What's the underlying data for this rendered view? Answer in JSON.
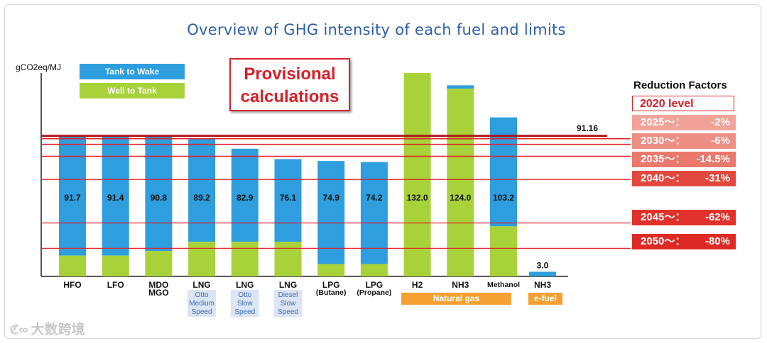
{
  "title": "Overview of GHG intensity of each fuel and limits",
  "provisional": [
    "Provisional",
    "calculations"
  ],
  "reduction_title": "Reduction Factors",
  "level_2020": "2020 level",
  "reductions": [
    {
      "label": "2025～：",
      "pct": "-2%",
      "limit": 89.34,
      "color": "#f1a39a"
    },
    {
      "label": "2030～：",
      "pct": "-6%",
      "limit": 85.69,
      "color": "#ee8f85"
    },
    {
      "label": "2035～：",
      "pct": "-14.5%",
      "limit": 77.95,
      "color": "#ea786d"
    },
    {
      "label": "2040～：",
      "pct": "-31%",
      "limit": 62.9,
      "color": "#e2483d"
    },
    {
      "label": "2045～：",
      "pct": "-62%",
      "limit": 34.64,
      "color": "#e0312a"
    },
    {
      "label": "2050～：",
      "pct": "-80%",
      "limit": 18.23,
      "color": "#de2a24"
    }
  ],
  "groups": {
    "natural_gas": "Natural gas",
    "efuel": "e-fuel"
  },
  "watermark": "大数跨境",
  "chart_data": {
    "type": "bar",
    "ylabel": "gCO2eq/MJ",
    "ylim": [
      0,
      132
    ],
    "legend": [
      "Tank to Wake",
      "Well to Tank"
    ],
    "colors": {
      "tank_to_wake": "#2e9ede",
      "well_to_tank": "#a8d23a"
    },
    "baseline": {
      "label": "91.16",
      "value": 91.16
    },
    "categories": [
      {
        "name": [
          "HFO"
        ],
        "sub": [],
        "total": 91.7,
        "wtt": 13.5,
        "label": "91.7"
      },
      {
        "name": [
          "LFO"
        ],
        "sub": [],
        "total": 91.4,
        "wtt": 13.5,
        "label": "91.4"
      },
      {
        "name": [
          "MDO",
          "MGO"
        ],
        "sub": [],
        "total": 90.8,
        "wtt": 16.5,
        "label": "90.8"
      },
      {
        "name": [
          "LNG"
        ],
        "sub": [
          "Otto",
          "Medium",
          "Speed"
        ],
        "total": 89.2,
        "wtt": 22.5,
        "label": "89.2"
      },
      {
        "name": [
          "LNG"
        ],
        "sub": [
          "Otto",
          "Slow",
          "Speed"
        ],
        "total": 82.9,
        "wtt": 22.5,
        "label": "82.9"
      },
      {
        "name": [
          "LNG"
        ],
        "sub": [
          "Diesel",
          "Slow",
          "Speed"
        ],
        "total": 76.1,
        "wtt": 22.5,
        "label": "76.1"
      },
      {
        "name": [
          "LPG",
          "(Butane)"
        ],
        "sub": [],
        "total": 74.9,
        "wtt": 8.0,
        "label": "74.9"
      },
      {
        "name": [
          "LPG",
          "(Propane)"
        ],
        "sub": [],
        "total": 74.2,
        "wtt": 8.0,
        "label": "74.2"
      },
      {
        "name": [
          "H2"
        ],
        "sub": [],
        "total": 132.0,
        "wtt": 132.0,
        "label": "132.0"
      },
      {
        "name": [
          "NH3"
        ],
        "sub": [],
        "total": 124.0,
        "wtt": 121.8,
        "label": "124.0"
      },
      {
        "name": [
          "Methanol"
        ],
        "sub": [],
        "total": 103.2,
        "wtt": 32.5,
        "label": "103.2"
      },
      {
        "name": [
          "NH3"
        ],
        "sub": [],
        "total": 3.0,
        "wtt": 0,
        "label": "3.0"
      }
    ]
  }
}
